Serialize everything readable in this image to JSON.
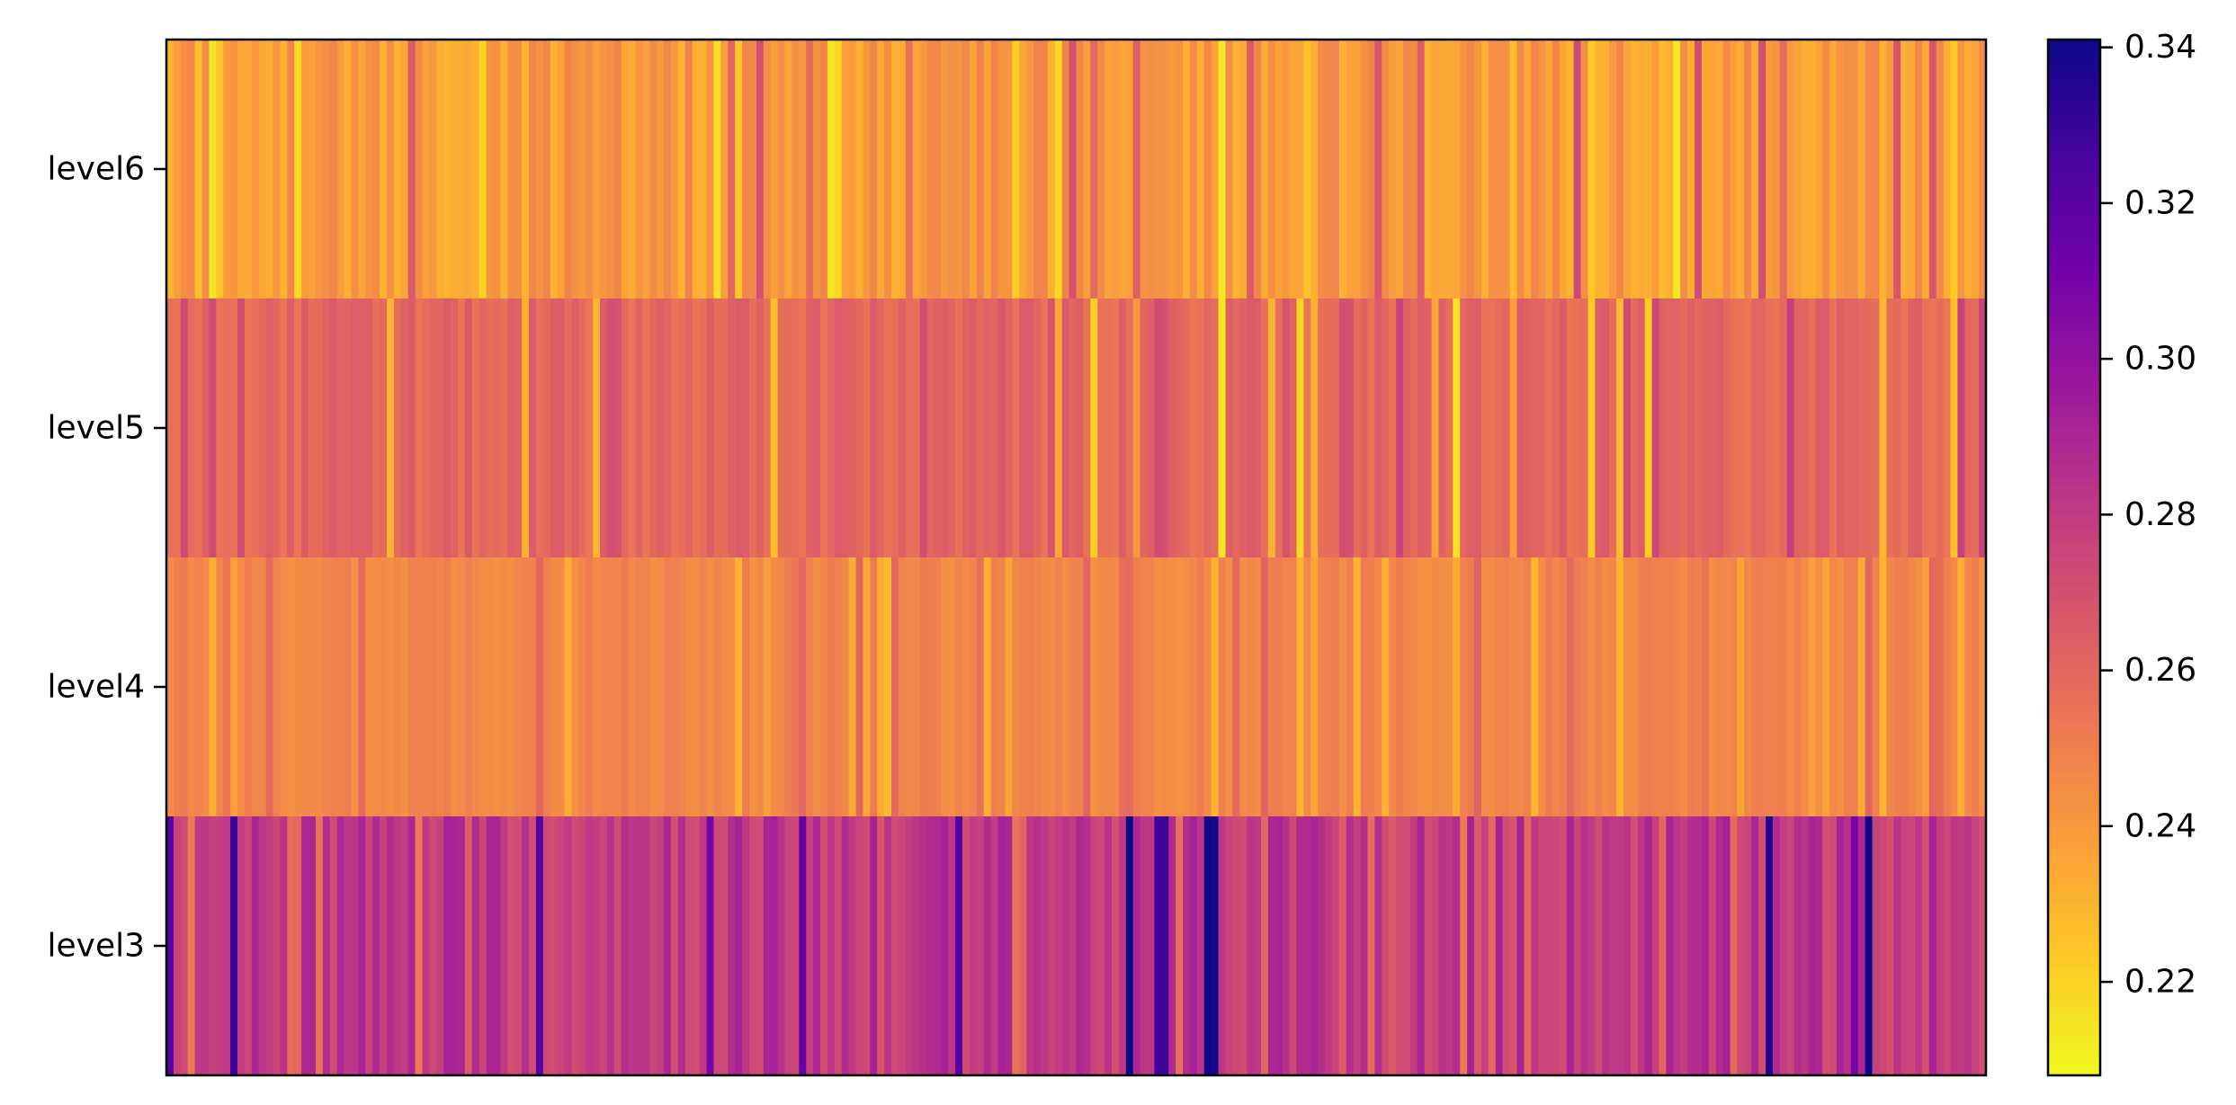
{
  "chart_data": {
    "type": "heatmap",
    "title": "",
    "xlabel": "",
    "ylabel": "",
    "rows": [
      "level6",
      "level5",
      "level4",
      "level3"
    ],
    "n_columns": 256,
    "colormap": "plasma_r",
    "colormap_stops": [
      "#f0f921",
      "#fdca26",
      "#fb9f3a",
      "#ed7953",
      "#d8576b",
      "#bd3786",
      "#9c179e",
      "#7201a8",
      "#46039f",
      "#0d0887"
    ],
    "x_ticks_visible": false,
    "colorbar": {
      "min": 0.208,
      "max": 0.341,
      "ticks": [
        0.22,
        0.24,
        0.26,
        0.28,
        0.3,
        0.32,
        0.34
      ],
      "tick_labels": [
        "0.22",
        "0.24",
        "0.26",
        "0.28",
        "0.30",
        "0.32",
        "0.34"
      ],
      "placement": "right"
    },
    "row_value_profile": {
      "level6": {
        "base": 0.2395,
        "spread": 0.009,
        "low": 0.213,
        "high": 0.275
      },
      "level5": {
        "base": 0.2595,
        "spread": 0.006,
        "low": 0.214,
        "high": 0.278
      },
      "level4": {
        "base": 0.2475,
        "spread": 0.004,
        "low": 0.228,
        "high": 0.262
      },
      "level3": {
        "base": 0.2815,
        "spread": 0.011,
        "low": 0.252,
        "high": 0.341
      }
    },
    "notable_cells": [
      {
        "row": "level3",
        "column": 146,
        "value": 0.341
      },
      {
        "row": "level3",
        "column": 147,
        "value": 0.338
      },
      {
        "row": "level6",
        "column": 6,
        "value": 0.214
      },
      {
        "row": "level6",
        "column": 148,
        "value": 0.213
      },
      {
        "row": "level5",
        "column": 148,
        "value": 0.214
      }
    ]
  }
}
